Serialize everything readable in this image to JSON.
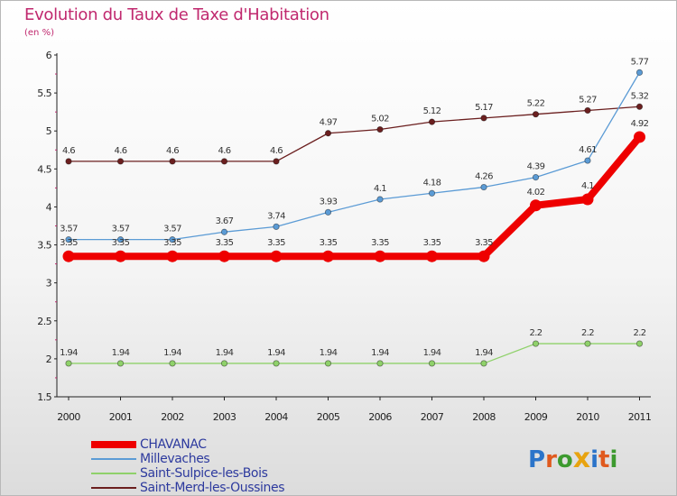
{
  "chart_data": {
    "type": "line",
    "title": "Evolution du Taux de Taxe d'Habitation",
    "subtitle": "(en %)",
    "xlabel": "",
    "ylabel": "",
    "ylim": [
      1.5,
      6
    ],
    "yticks": [
      "1.5",
      "2",
      "2.5",
      "3",
      "3.5",
      "4",
      "4.5",
      "5",
      "5.5",
      "6"
    ],
    "categories": [
      "2000",
      "2001",
      "2002",
      "2003",
      "2004",
      "2005",
      "2006",
      "2007",
      "2008",
      "2009",
      "2010",
      "2011"
    ],
    "grid": false,
    "legend_position": "bottom-left",
    "series": [
      {
        "name": "Saint-Merd-les-Oussines",
        "color": "#6b1f1f",
        "values": [
          4.6,
          4.6,
          4.6,
          4.6,
          4.6,
          4.97,
          5.02,
          5.12,
          5.17,
          5.22,
          5.27,
          5.32
        ],
        "labels": [
          "4.6",
          "4.6",
          "4.6",
          "4.6",
          "4.6",
          "4.97",
          "5.02",
          "5.12",
          "5.17",
          "5.22",
          "5.27",
          "5.32"
        ]
      },
      {
        "name": "Millevaches",
        "color": "#5b9bd5",
        "values": [
          3.57,
          3.57,
          3.57,
          3.67,
          3.74,
          3.93,
          4.1,
          4.18,
          4.26,
          4.39,
          4.61,
          5.77
        ],
        "labels": [
          "3.57",
          "3.57",
          "3.57",
          "3.67",
          "3.74",
          "3.93",
          "4.1",
          "4.18",
          "4.26",
          "4.39",
          "4.61",
          "5.77"
        ]
      },
      {
        "name": "Saint-Sulpice-les-Bois",
        "color": "#8fd16a",
        "values": [
          1.94,
          1.94,
          1.94,
          1.94,
          1.94,
          1.94,
          1.94,
          1.94,
          1.94,
          2.2,
          2.2,
          2.2
        ],
        "labels": [
          "1.94",
          "1.94",
          "1.94",
          "1.94",
          "1.94",
          "1.94",
          "1.94",
          "1.94",
          "1.94",
          "2.2",
          "2.2",
          "2.2"
        ]
      },
      {
        "name": "CHAVANAC",
        "color": "#ee0000",
        "values": [
          3.35,
          3.35,
          3.35,
          3.35,
          3.35,
          3.35,
          3.35,
          3.35,
          3.35,
          4.02,
          4.1,
          4.92
        ],
        "labels": [
          "3.35",
          "3.35",
          "3.35",
          "3.35",
          "3.35",
          "3.35",
          "3.35",
          "3.35",
          "3.35",
          "4.02",
          "4.1",
          "4.92"
        ]
      }
    ],
    "legend_order": [
      "CHAVANAC",
      "Millevaches",
      "Saint-Sulpice-les-Bois",
      "Saint-Merd-les-Oussines"
    ]
  },
  "logo": {
    "text": "Proxiti",
    "colors": [
      "#2b74c9",
      "#e05a1e",
      "#3d9a2f",
      "#e8a310",
      "#2b74c9",
      "#e05a1e",
      "#3d9a2f"
    ]
  }
}
